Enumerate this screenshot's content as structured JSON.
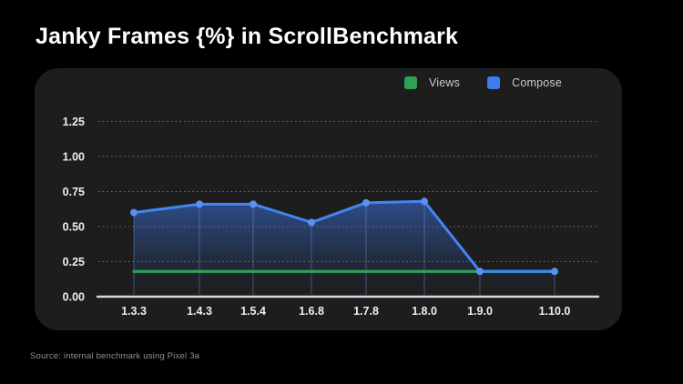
{
  "title": "Janky Frames {%} in ScrollBenchmark",
  "source_note": "Source: internal benchmark using Pixel 3a",
  "legend": [
    {
      "label": "Views",
      "color": "#2fa152"
    },
    {
      "label": "Compose",
      "color": "#3d7cf0"
    }
  ],
  "colors": {
    "background": "#000000",
    "panel": "#1d1d1e",
    "views_green": "#2fa152",
    "compose_blue": "#4285f4",
    "axis_line": "#d9d9d9",
    "gridline": "#707070",
    "tick_text": "#efefef"
  },
  "chart_data": {
    "type": "line",
    "title": "Janky Frames {%} in ScrollBenchmark",
    "xlabel": "",
    "ylabel": "",
    "categories": [
      "1.3.3",
      "1.4.3",
      "1.5.4",
      "1.6.8",
      "1.7.8",
      "1.8.0",
      "1.9.0",
      "1.10.0"
    ],
    "series": [
      {
        "name": "Views",
        "color": "#2fa152",
        "values": [
          0.18,
          0.18,
          0.18,
          0.18,
          0.18,
          0.18,
          0.18,
          0.18
        ],
        "area": false,
        "dots": false
      },
      {
        "name": "Compose",
        "color": "#4285f4",
        "values": [
          0.6,
          0.66,
          0.66,
          0.53,
          0.67,
          0.68,
          0.18,
          0.18
        ],
        "area": true,
        "dots": true
      }
    ],
    "yticks": [
      0.0,
      0.25,
      0.5,
      0.75,
      1.0,
      1.25
    ],
    "ytick_labels": [
      "0.00",
      "0.25",
      "0.50",
      "0.75",
      "1.00",
      "1.25"
    ],
    "ylim": [
      0,
      1.35
    ],
    "grid": "dotted-horizontal",
    "legend_position": "top-right"
  }
}
